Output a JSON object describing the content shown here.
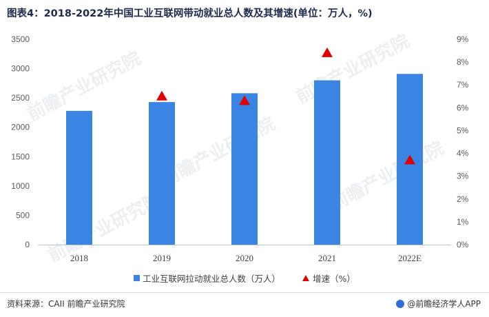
{
  "title": "图表4：2018-2022年中国工业互联网带动就业总人数及其增速(单位：万人，%)",
  "watermark": "前瞻产业研究院",
  "footer": {
    "source": "资料来源：CAII  前瞻产业研究院",
    "brand": "@前瞻经济学人APP"
  },
  "colors": {
    "bar": "#3a84e4",
    "marker": "#e00000"
  },
  "chart_data": {
    "type": "bar",
    "categories": [
      "2018",
      "2019",
      "2020",
      "2021",
      "2022E"
    ],
    "series": [
      {
        "name": "工业互联网拉动就业总人数（万人）",
        "type": "bar",
        "axis": "left",
        "values": [
          2280,
          2430,
          2580,
          2800,
          2910
        ]
      },
      {
        "name": "增速（%）",
        "type": "scatter",
        "marker": "triangle",
        "axis": "right",
        "values": [
          null,
          6.5,
          6.3,
          8.4,
          3.7
        ]
      }
    ],
    "y_left": {
      "min": 0,
      "max": 3500,
      "ticks": [
        0,
        500,
        1000,
        1500,
        2000,
        2500,
        3000,
        3500
      ]
    },
    "y_right": {
      "min": 0,
      "max": 9,
      "ticks": [
        "0%",
        "1%",
        "2%",
        "3%",
        "4%",
        "5%",
        "6%",
        "7%",
        "8%",
        "9%"
      ]
    },
    "legend_position": "bottom",
    "grid": false
  }
}
